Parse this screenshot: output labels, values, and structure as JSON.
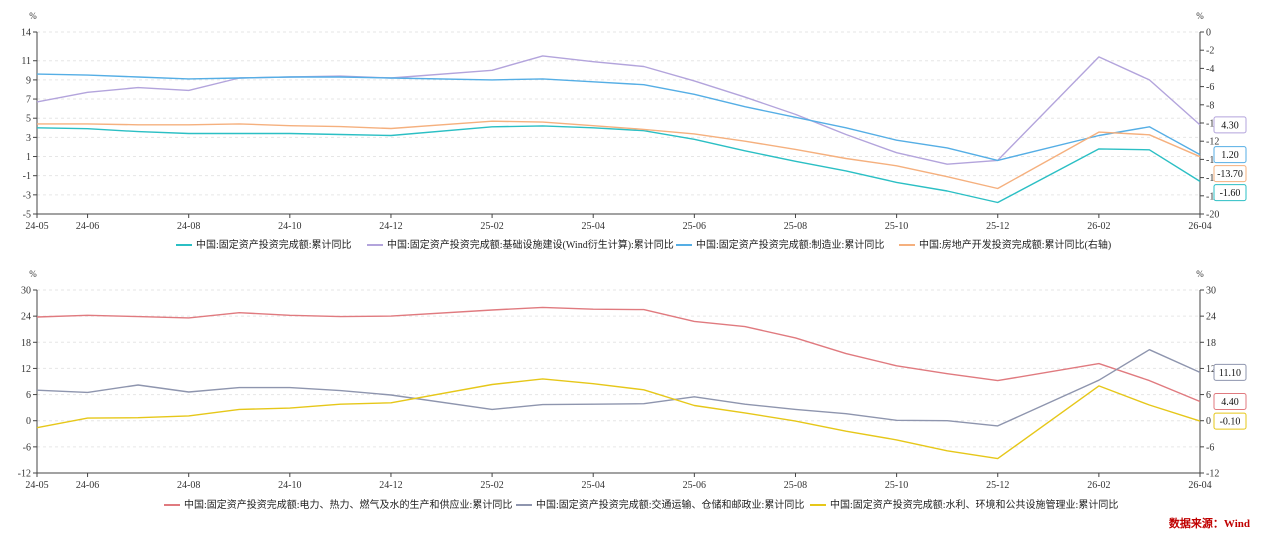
{
  "source_label": "数据来源：Wind",
  "chart_data": [
    {
      "type": "line",
      "y_unit_left": "%",
      "y_unit_right": "%",
      "x_ticks": [
        "24-05",
        "24-06",
        "24-08",
        "24-10",
        "24-12",
        "25-02",
        "25-04",
        "25-06",
        "25-08",
        "25-10",
        "25-12",
        "26-02",
        "26-04"
      ],
      "x": [
        "24-05",
        "24-06",
        "24-07",
        "24-08",
        "24-09",
        "24-10",
        "24-11",
        "24-12",
        "25-02",
        "25-03",
        "25-04",
        "25-05",
        "25-06",
        "25-07",
        "25-08",
        "25-09",
        "25-10",
        "25-11",
        "25-12",
        "26-02",
        "26-03",
        "26-04"
      ],
      "ylim_left": [
        -5,
        14
      ],
      "yticks_left": [
        "14",
        "11",
        "9",
        "7",
        "5",
        "3",
        "1",
        "-1",
        "-3",
        "-5"
      ],
      "ylim_right": [
        -20,
        0
      ],
      "yticks_right": [
        "0",
        "-2",
        "-4",
        "-6",
        "-8",
        "-10",
        "-12",
        "-14",
        "-16",
        "-18",
        "-20"
      ],
      "grid": true,
      "legend_position": "bottom",
      "series": [
        {
          "name": "中国:固定资产投资完成额:累计同比",
          "axis": "left",
          "color": "#2bbfc4",
          "values": [
            4.0,
            3.9,
            3.6,
            3.4,
            3.4,
            3.4,
            3.3,
            3.2,
            4.1,
            4.2,
            4.0,
            3.7,
            2.8,
            1.6,
            0.5,
            -0.5,
            -1.7,
            -2.6,
            -3.8,
            1.8,
            1.7,
            -1.6
          ],
          "end_label": "-1.60"
        },
        {
          "name": "中国:固定资产投资完成额:基础设施建设(Wind衍生计算):累计同比",
          "axis": "left",
          "color": "#b3a4dc",
          "values": [
            6.7,
            7.7,
            8.2,
            7.9,
            9.2,
            9.3,
            9.4,
            9.2,
            10.0,
            11.5,
            10.9,
            10.4,
            8.9,
            7.2,
            5.4,
            3.3,
            1.4,
            0.2,
            0.6,
            11.4,
            9.0,
            4.3
          ],
          "end_label": "4.30"
        },
        {
          "name": "中国:固定资产投资完成额:制造业:累计同比",
          "axis": "left",
          "color": "#55aee5",
          "values": [
            9.6,
            9.5,
            9.3,
            9.1,
            9.2,
            9.3,
            9.3,
            9.2,
            9.0,
            9.1,
            8.8,
            8.5,
            7.5,
            6.2,
            5.1,
            4.0,
            2.7,
            1.9,
            0.6,
            3.2,
            4.1,
            1.2
          ],
          "end_label": "1.20"
        },
        {
          "name": "中国:房地产开发投资完成额:累计同比(右轴)",
          "axis": "right",
          "color": "#f5b07e",
          "values": [
            -10.1,
            -10.1,
            -10.2,
            -10.2,
            -10.1,
            -10.3,
            -10.4,
            -10.6,
            -9.8,
            -9.9,
            -10.3,
            -10.7,
            -11.2,
            -12.0,
            -12.9,
            -13.9,
            -14.7,
            -15.9,
            -17.2,
            -11.0,
            -11.3,
            -13.7
          ],
          "end_label": "-13.70"
        }
      ]
    },
    {
      "type": "line",
      "y_unit_left": "%",
      "y_unit_right": "%",
      "x_ticks": [
        "24-05",
        "24-06",
        "24-08",
        "24-10",
        "24-12",
        "25-02",
        "25-04",
        "25-06",
        "25-08",
        "25-10",
        "25-12",
        "26-02",
        "26-04"
      ],
      "x": [
        "24-05",
        "24-06",
        "24-07",
        "24-08",
        "24-09",
        "24-10",
        "24-11",
        "24-12",
        "25-02",
        "25-03",
        "25-04",
        "25-05",
        "25-06",
        "25-07",
        "25-08",
        "25-09",
        "25-10",
        "25-11",
        "25-12",
        "26-02",
        "26-03",
        "26-04"
      ],
      "ylim_left": [
        -12,
        30
      ],
      "yticks_left": [
        "30",
        "24",
        "18",
        "12",
        "6",
        "0",
        "-6",
        "-12"
      ],
      "ylim_right": [
        -12,
        30
      ],
      "yticks_right": [
        "30",
        "24",
        "18",
        "12",
        "6",
        "0",
        "-6",
        "-12"
      ],
      "grid": true,
      "legend_position": "bottom",
      "series": [
        {
          "name": "中国:固定资产投资完成额:电力、热力、燃气及水的生产和供应业:累计同比",
          "color": "#e07a7f",
          "values": [
            23.8,
            24.2,
            23.9,
            23.6,
            24.8,
            24.2,
            23.9,
            24.0,
            25.4,
            26.0,
            25.6,
            25.5,
            22.8,
            21.6,
            19.0,
            15.4,
            12.6,
            10.8,
            9.2,
            13.1,
            9.2,
            4.4
          ],
          "end_label": "4.40"
        },
        {
          "name": "中国:固定资产投资完成额:交通运输、仓储和邮政业:累计同比",
          "color": "#8e95ae",
          "values": [
            7.0,
            6.5,
            8.2,
            6.6,
            7.6,
            7.6,
            6.9,
            5.9,
            2.6,
            3.7,
            3.8,
            3.9,
            5.5,
            3.8,
            2.6,
            1.6,
            0.1,
            0.0,
            -1.2,
            9.3,
            16.3,
            11.1
          ],
          "end_label": "11.10"
        },
        {
          "name": "中国:固定资产投资完成额:水利、环境和公共设施管理业:累计同比",
          "color": "#e6c719",
          "values": [
            -1.6,
            0.6,
            0.7,
            1.1,
            2.6,
            2.9,
            3.8,
            4.1,
            8.3,
            9.6,
            8.5,
            7.1,
            3.5,
            1.8,
            -0.1,
            -2.4,
            -4.4,
            -6.9,
            -8.7,
            8.0,
            3.6,
            -0.1
          ],
          "end_label": "-0.10"
        }
      ]
    }
  ]
}
